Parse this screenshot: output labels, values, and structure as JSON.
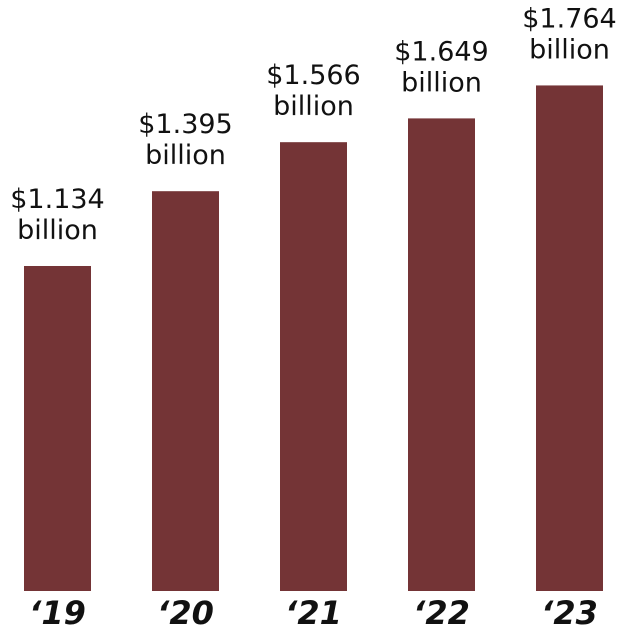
{
  "chart_data": {
    "type": "bar",
    "categories": [
      "‘19",
      "‘20",
      "‘21",
      "‘22",
      "‘23"
    ],
    "values": [
      1.134,
      1.395,
      1.566,
      1.649,
      1.764
    ],
    "data_labels": [
      [
        "$1.134",
        "billion"
      ],
      [
        "$1.395",
        "billion"
      ],
      [
        "$1.566",
        "billion"
      ],
      [
        "$1.649",
        "billion"
      ],
      [
        "$1.764",
        "billion"
      ]
    ],
    "title": "",
    "xlabel": "",
    "ylabel": "",
    "ylim": [
      0,
      2.0
    ],
    "grid": false,
    "legend": "none",
    "colors": {
      "bar": "#743436",
      "text": "#111111",
      "background": "#ffffff"
    }
  }
}
